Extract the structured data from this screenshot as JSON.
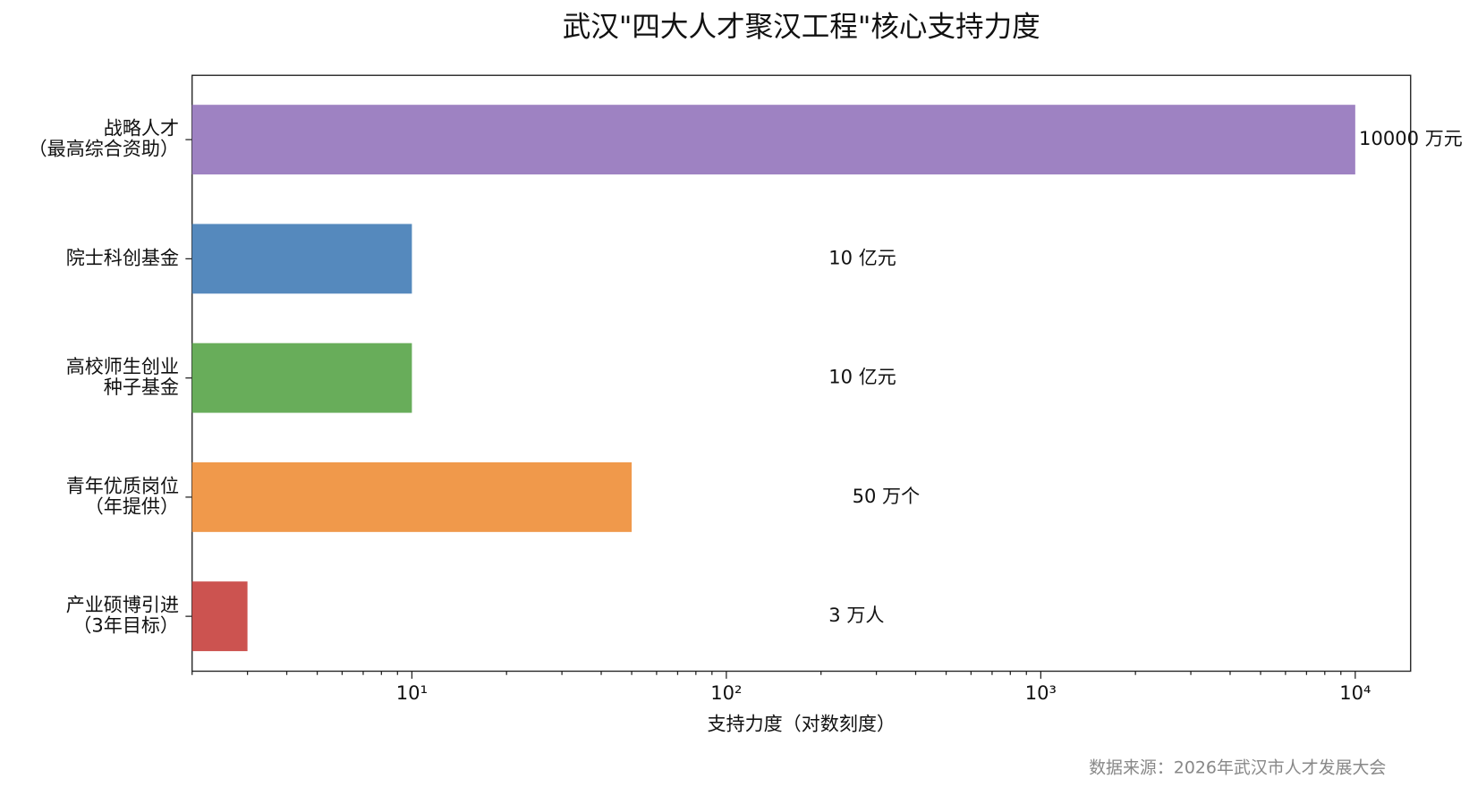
{
  "chart_data": {
    "type": "barh",
    "title": "武汉\"四大人才聚汉工程\"核心支持力度",
    "categories": [
      "战略人才\n（最高综合资助）",
      "院士科创基金",
      "高校师生创业\n种子基金",
      "青年优质岗位\n（年提供）",
      "产业硕博引进\n（3年目标）"
    ],
    "values": [
      10000,
      10,
      10,
      50,
      3
    ],
    "value_labels": [
      "10000 万元",
      "10 亿元",
      "10 亿元",
      "50 万个",
      "3 万人"
    ],
    "colors": [
      "#9e82c2",
      "#5589bd",
      "#68ad5a",
      "#f0994b",
      "#cc5350"
    ],
    "xlabel": "支持力度（对数刻度）",
    "xscale": "log",
    "xlim": [
      2,
      15000
    ],
    "xticks": [
      {
        "value": 10,
        "label": "10¹"
      },
      {
        "value": 100,
        "label": "10²"
      },
      {
        "value": 1000,
        "label": "10³"
      },
      {
        "value": 10000,
        "label": "10⁴"
      }
    ],
    "source": "数据来源：2026年武汉市人才发展大会"
  }
}
